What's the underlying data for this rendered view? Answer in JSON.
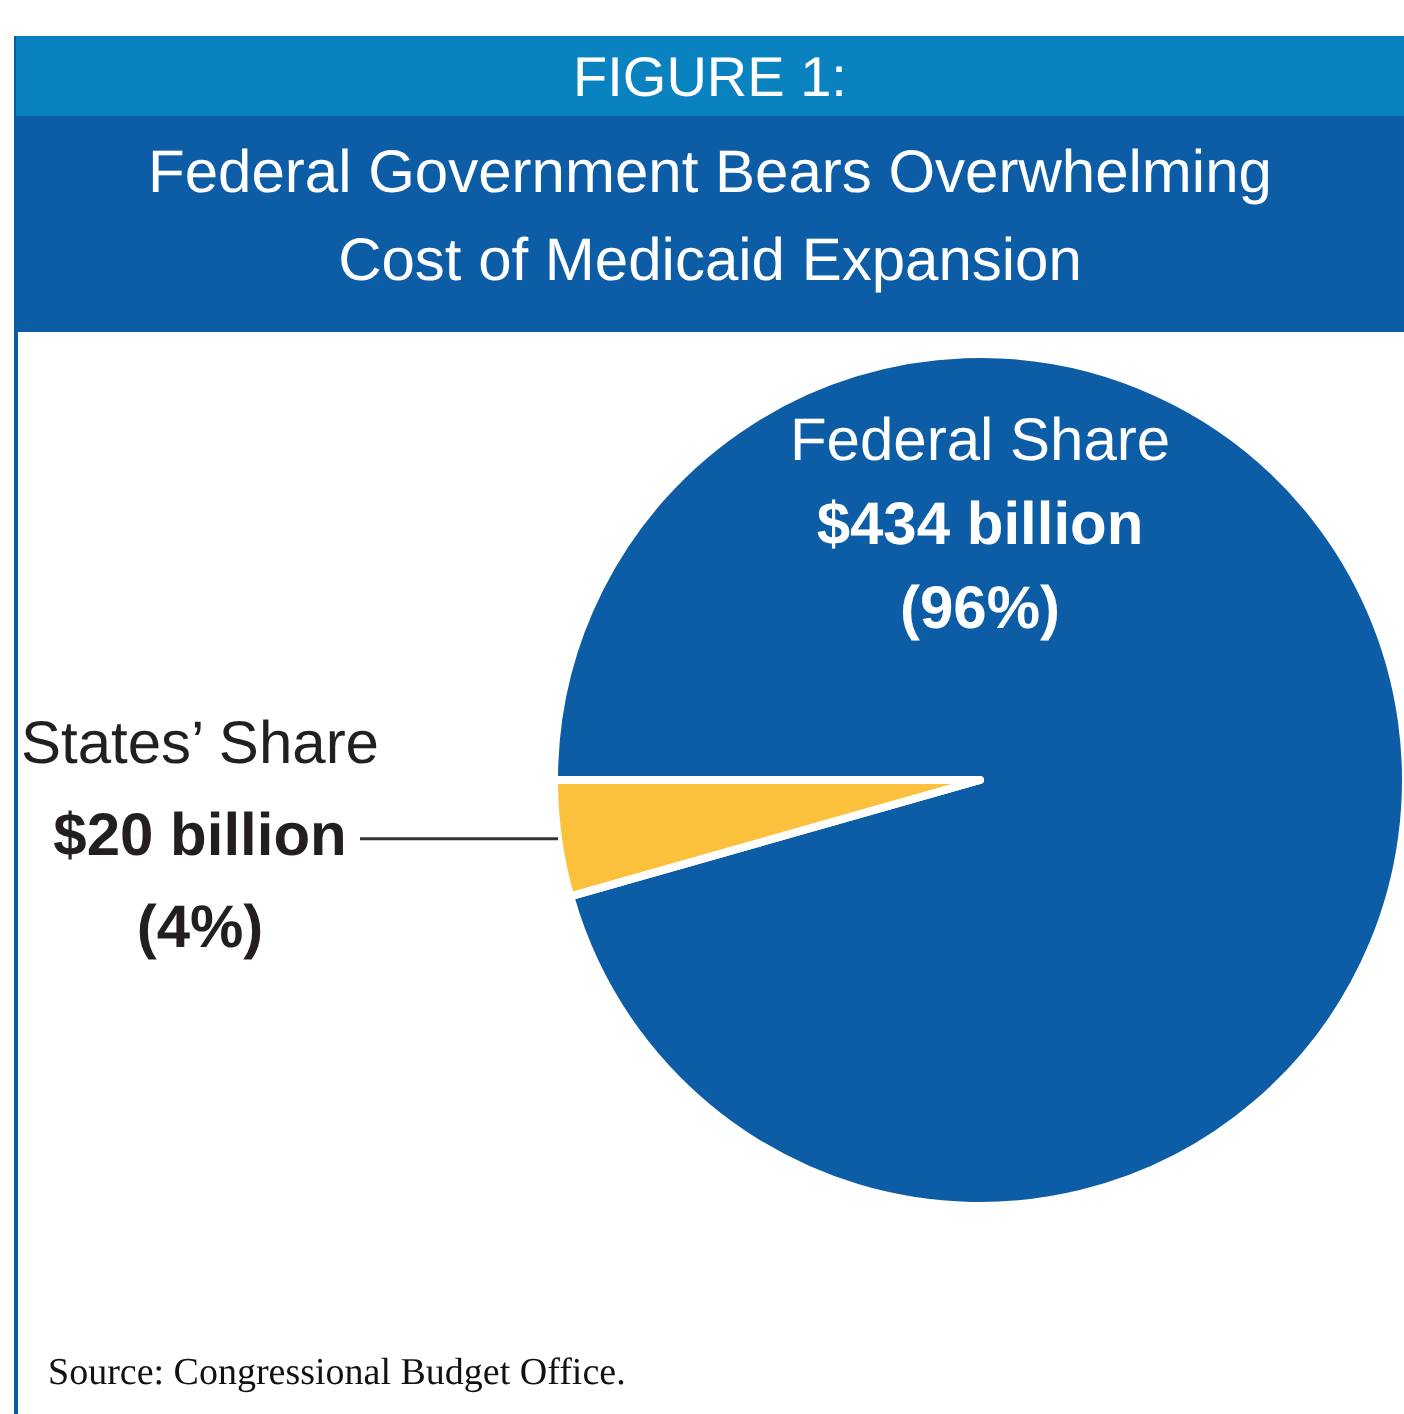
{
  "chart_data": {
    "type": "pie",
    "title": "FIGURE 1:",
    "subtitle": "Federal Government Bears Overwhelming Cost of Medicaid Expansion",
    "categories": [
      "Federal Share",
      "States’ Share"
    ],
    "values": [
      434,
      20
    ],
    "colors": [
      "#0c5da6",
      "#fbc13c"
    ],
    "value_labels": [
      "$434 billion",
      "$20 billion"
    ],
    "annotations": [
      {
        "text": "(96%)",
        "x": "Federal Share"
      },
      {
        "text": "(4%)",
        "x": "States’ Share"
      },
      "Source: Congressional Budget Office."
    ]
  }
}
